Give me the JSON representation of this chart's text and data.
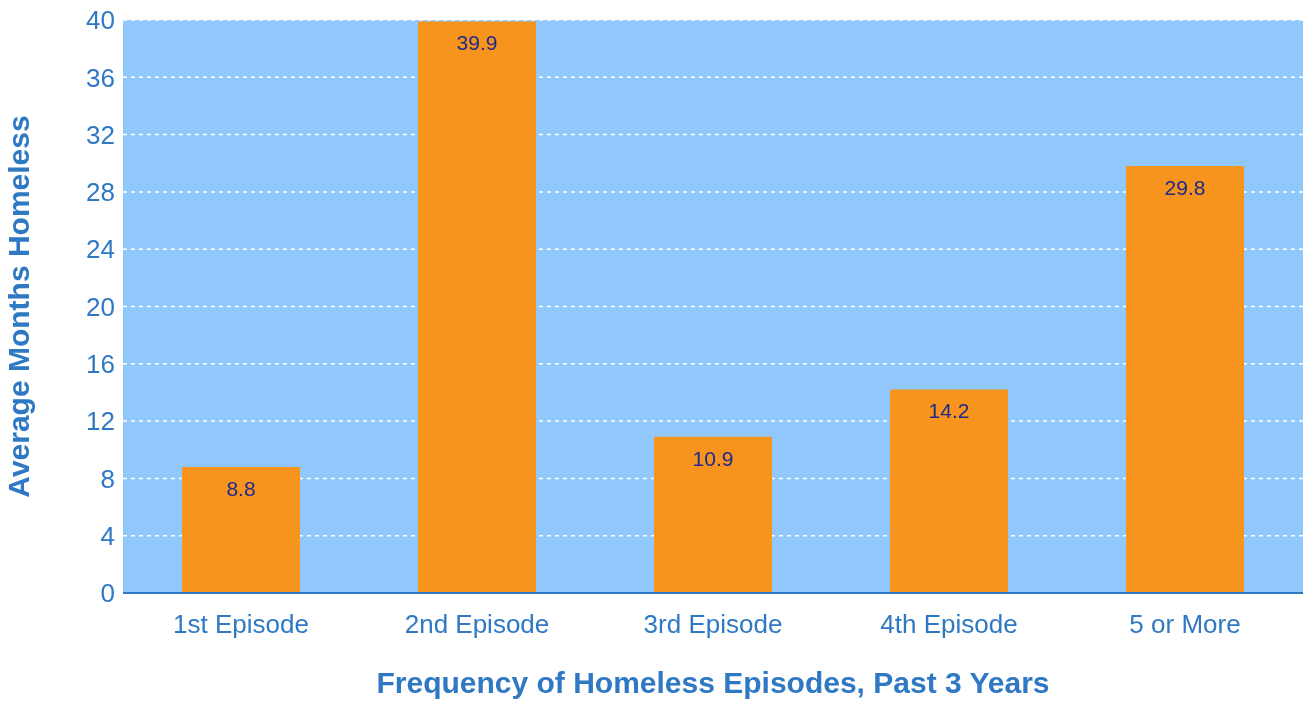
{
  "chart_data": {
    "type": "bar",
    "xlabel": "Frequency of Homeless Episodes, Past 3 Years",
    "ylabel": "Average Months Homeless",
    "categories": [
      "1st Episode",
      "2nd Episode",
      "3rd Episode",
      "4th Episode",
      "5 or More"
    ],
    "values": [
      8.8,
      39.9,
      10.9,
      14.2,
      29.8
    ],
    "color": "#f7941d",
    "ylim": [
      0,
      40
    ],
    "yticks": [
      0,
      4,
      8,
      12,
      16,
      20,
      24,
      28,
      32,
      36,
      40
    ],
    "grid": "y",
    "data_labels": true
  }
}
